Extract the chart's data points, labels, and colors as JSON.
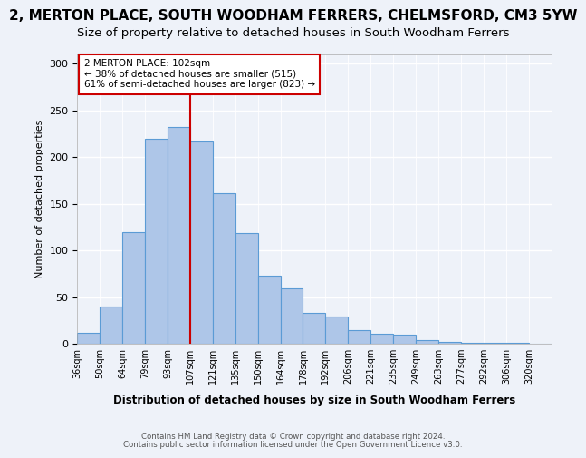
{
  "title": "2, MERTON PLACE, SOUTH WOODHAM FERRERS, CHELMSFORD, CM3 5YW",
  "subtitle": "Size of property relative to detached houses in South Woodham Ferrers",
  "xlabel": "Distribution of detached houses by size in South Woodham Ferrers",
  "ylabel": "Number of detached properties",
  "bar_labels": [
    "36sqm",
    "50sqm",
    "64sqm",
    "79sqm",
    "93sqm",
    "107sqm",
    "121sqm",
    "135sqm",
    "150sqm",
    "164sqm",
    "178sqm",
    "192sqm",
    "206sqm",
    "221sqm",
    "235sqm",
    "249sqm",
    "263sqm",
    "277sqm",
    "292sqm",
    "306sqm",
    "320sqm"
  ],
  "bar_values": [
    12,
    40,
    120,
    220,
    232,
    217,
    161,
    119,
    73,
    59,
    33,
    29,
    15,
    11,
    10,
    4,
    2,
    1,
    1,
    1,
    0
  ],
  "bar_color": "#aec6e8",
  "bar_edge_color": "#5b9bd5",
  "vline_x": 5,
  "vline_color": "#cc0000",
  "annotation_text": "2 MERTON PLACE: 102sqm\n← 38% of detached houses are smaller (515)\n61% of semi-detached houses are larger (823) →",
  "annotation_box_color": "#ffffff",
  "annotation_box_edge": "#cc0000",
  "ylim": [
    0,
    310
  ],
  "yticks": [
    0,
    50,
    100,
    150,
    200,
    250,
    300
  ],
  "footer1": "Contains HM Land Registry data © Crown copyright and database right 2024.",
  "footer2": "Contains public sector information licensed under the Open Government Licence v3.0.",
  "bg_color": "#eef2f9",
  "plot_bg_color": "#eef2f9",
  "title_fontsize": 11,
  "subtitle_fontsize": 9.5
}
